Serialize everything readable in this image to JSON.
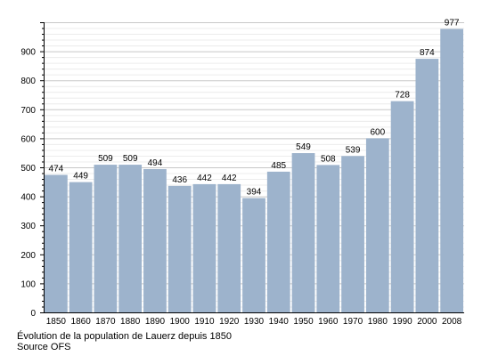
{
  "chart_data": {
    "type": "bar",
    "categories": [
      "1850",
      "1860",
      "1870",
      "1880",
      "1890",
      "1900",
      "1910",
      "1920",
      "1930",
      "1940",
      "1950",
      "1960",
      "1970",
      "1980",
      "1990",
      "2000",
      "2008"
    ],
    "values": [
      474,
      449,
      509,
      509,
      494,
      436,
      442,
      442,
      394,
      485,
      549,
      508,
      539,
      600,
      728,
      874,
      977
    ],
    "data_labels": [
      "474",
      "449",
      "509",
      "509",
      "494",
      "436",
      "442",
      "442",
      "394",
      "485",
      "549",
      "508",
      "539",
      "600",
      "728",
      "874",
      "977"
    ],
    "yticks": [
      0,
      100,
      200,
      300,
      400,
      500,
      600,
      700,
      800,
      900
    ],
    "ytick_labels": [
      "0",
      "100",
      "200",
      "300",
      "400",
      "500",
      "600",
      "700",
      "800",
      "900"
    ],
    "ylim": [
      0,
      1000
    ],
    "grid": true,
    "bar_color": "#9db3cc",
    "caption": "Évolution de la population de Lauerz depuis 1850",
    "source": "Source OFS"
  }
}
